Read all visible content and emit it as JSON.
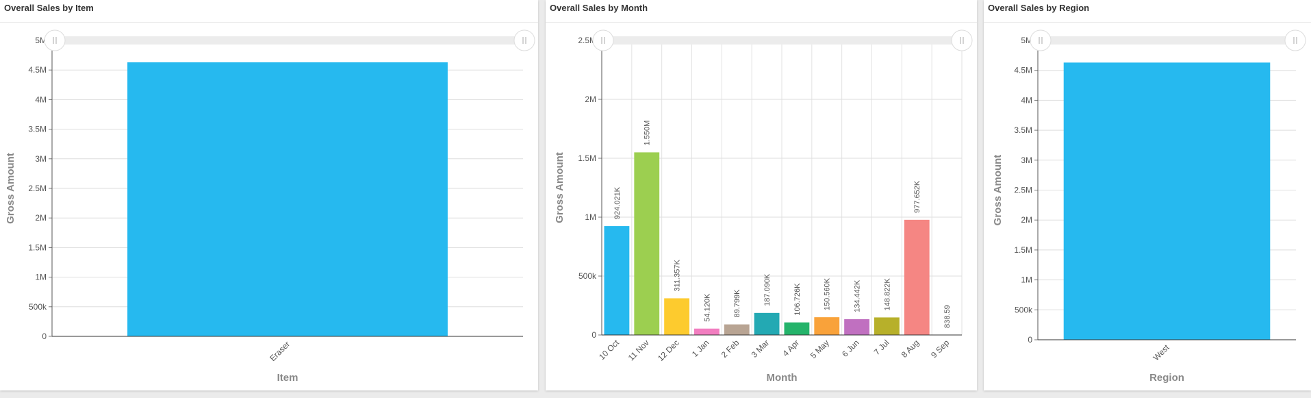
{
  "panels": [
    {
      "title": "Overall Sales by Item",
      "chart_data": {
        "type": "bar",
        "categories": [
          "Eraser"
        ],
        "values": [
          4630000
        ],
        "colors": [
          "#26b9ef"
        ],
        "xlabel": "Item",
        "ylabel": "Gross Amount",
        "ylim": [
          0,
          5000000
        ],
        "yticks": [
          "0",
          "500k",
          "1M",
          "1.5M",
          "2M",
          "2.5M",
          "3M",
          "3.5M",
          "4M",
          "4.5M",
          "5M"
        ],
        "data_labels": [],
        "grid": true
      }
    },
    {
      "title": "Overall Sales by Month",
      "chart_data": {
        "type": "bar",
        "categories": [
          "10 Oct",
          "11 Nov",
          "12 Dec",
          "1 Jan",
          "2 Feb",
          "3 Mar",
          "4 Apr",
          "5 May",
          "6 Jun",
          "7 Jul",
          "8 Aug",
          "9 Sep"
        ],
        "values": [
          924021,
          1550000,
          311357,
          54120,
          89799,
          187090,
          106726,
          150560,
          134442,
          148822,
          977652,
          838.59
        ],
        "data_labels": [
          "924.021K",
          "1.550M",
          "311.357K",
          "54.120K",
          "89.799K",
          "187.090K",
          "106.726K",
          "150.560K",
          "134.442K",
          "148.822K",
          "977.652K",
          "838.59"
        ],
        "colors": [
          "#26b9ef",
          "#9ccf50",
          "#fdcb2e",
          "#f27ec0",
          "#b8a493",
          "#23a9b3",
          "#24b36a",
          "#f9a23a",
          "#c070c0",
          "#b7b02a",
          "#f58683",
          "#26b9ef"
        ],
        "xlabel": "Month",
        "ylabel": "Gross Amount",
        "ylim": [
          0,
          2500000
        ],
        "yticks": [
          "0",
          "500k",
          "1M",
          "1.5M",
          "2M",
          "2.5M"
        ],
        "grid": true
      }
    },
    {
      "title": "Overall Sales by Region",
      "chart_data": {
        "type": "bar",
        "categories": [
          "West"
        ],
        "values": [
          4630000
        ],
        "colors": [
          "#26b9ef"
        ],
        "xlabel": "Region",
        "ylabel": "Gross Amount",
        "ylim": [
          0,
          5000000
        ],
        "yticks": [
          "0",
          "500k",
          "1M",
          "1.5M",
          "2M",
          "2.5M",
          "3M",
          "3.5M",
          "4M",
          "4.5M",
          "5M"
        ],
        "data_labels": [],
        "grid": true
      }
    }
  ],
  "chart_data": [
    {
      "type": "bar",
      "title": "Overall Sales by Item",
      "categories": [
        "Eraser"
      ],
      "values": [
        4630000
      ],
      "xlabel": "Item",
      "ylabel": "Gross Amount",
      "ylim": [
        0,
        5000000
      ]
    },
    {
      "type": "bar",
      "title": "Overall Sales by Month",
      "categories": [
        "10 Oct",
        "11 Nov",
        "12 Dec",
        "1 Jan",
        "2 Feb",
        "3 Mar",
        "4 Apr",
        "5 May",
        "6 Jun",
        "7 Jul",
        "8 Aug",
        "9 Sep"
      ],
      "values": [
        924021,
        1550000,
        311357,
        54120,
        89799,
        187090,
        106726,
        150560,
        134442,
        148822,
        977652,
        838.59
      ],
      "xlabel": "Month",
      "ylabel": "Gross Amount",
      "ylim": [
        0,
        2500000
      ]
    },
    {
      "type": "bar",
      "title": "Overall Sales by Region",
      "categories": [
        "West"
      ],
      "values": [
        4630000
      ],
      "xlabel": "Region",
      "ylabel": "Gross Amount",
      "ylim": [
        0,
        5000000
      ]
    }
  ]
}
